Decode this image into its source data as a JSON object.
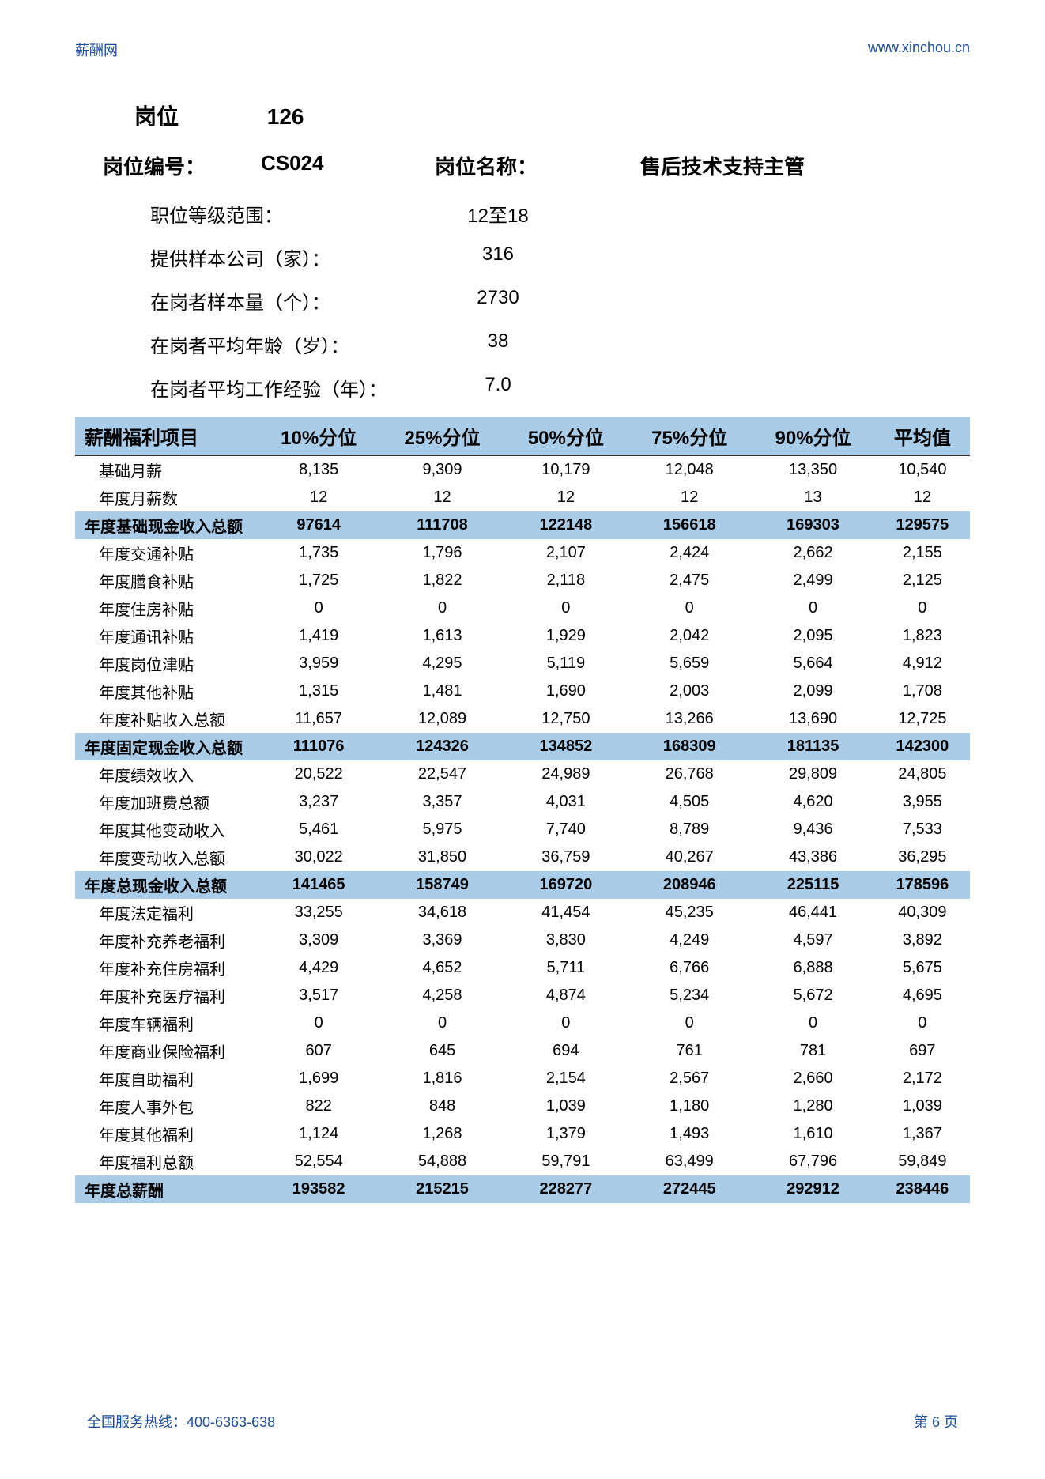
{
  "header": {
    "left": "薪酬网",
    "right": "www.xinchou.cn"
  },
  "footer": {
    "left": "全国服务热线：400-6363-638",
    "right": "第 6 页"
  },
  "top": {
    "position_label": "岗位",
    "position_num": "126",
    "job_code_label": "岗位编号：",
    "job_code": "CS024",
    "job_name_label": "岗位名称：",
    "job_name": "售后技术支持主管"
  },
  "meta": [
    {
      "label": "职位等级范围：",
      "value": "12至18"
    },
    {
      "label": "提供样本公司（家）：",
      "value": "316"
    },
    {
      "label": "在岗者样本量（个）：",
      "value": "2730"
    },
    {
      "label": "在岗者平均年龄（岁）：",
      "value": "38"
    },
    {
      "label": "在岗者平均工作经验（年）：",
      "value": "7.0"
    }
  ],
  "table": {
    "columns": [
      "薪酬福利项目",
      "10%分位",
      "25%分位",
      "50%分位",
      "75%分位",
      "90%分位",
      "平均值"
    ],
    "rows": [
      {
        "type": "data",
        "cells": [
          "基础月薪",
          "8,135",
          "9,309",
          "10,179",
          "12,048",
          "13,350",
          "10,540"
        ]
      },
      {
        "type": "data",
        "cells": [
          "年度月薪数",
          "12",
          "12",
          "12",
          "12",
          "13",
          "12"
        ]
      },
      {
        "type": "sub",
        "cells": [
          "年度基础现金收入总额",
          "97614",
          "111708",
          "122148",
          "156618",
          "169303",
          "129575"
        ]
      },
      {
        "type": "data",
        "cells": [
          "年度交通补贴",
          "1,735",
          "1,796",
          "2,107",
          "2,424",
          "2,662",
          "2,155"
        ]
      },
      {
        "type": "data",
        "cells": [
          "年度膳食补贴",
          "1,725",
          "1,822",
          "2,118",
          "2,475",
          "2,499",
          "2,125"
        ]
      },
      {
        "type": "data",
        "cells": [
          "年度住房补贴",
          "0",
          "0",
          "0",
          "0",
          "0",
          "0"
        ]
      },
      {
        "type": "data",
        "cells": [
          "年度通讯补贴",
          "1,419",
          "1,613",
          "1,929",
          "2,042",
          "2,095",
          "1,823"
        ]
      },
      {
        "type": "data",
        "cells": [
          "年度岗位津贴",
          "3,959",
          "4,295",
          "5,119",
          "5,659",
          "5,664",
          "4,912"
        ]
      },
      {
        "type": "data",
        "cells": [
          "年度其他补贴",
          "1,315",
          "1,481",
          "1,690",
          "2,003",
          "2,099",
          "1,708"
        ]
      },
      {
        "type": "data",
        "cells": [
          "年度补贴收入总额",
          "11,657",
          "12,089",
          "12,750",
          "13,266",
          "13,690",
          "12,725"
        ]
      },
      {
        "type": "sub",
        "cells": [
          "年度固定现金收入总额",
          "111076",
          "124326",
          "134852",
          "168309",
          "181135",
          "142300"
        ]
      },
      {
        "type": "data",
        "cells": [
          "年度绩效收入",
          "20,522",
          "22,547",
          "24,989",
          "26,768",
          "29,809",
          "24,805"
        ]
      },
      {
        "type": "data",
        "cells": [
          "年度加班费总额",
          "3,237",
          "3,357",
          "4,031",
          "4,505",
          "4,620",
          "3,955"
        ]
      },
      {
        "type": "data",
        "cells": [
          "年度其他变动收入",
          "5,461",
          "5,975",
          "7,740",
          "8,789",
          "9,436",
          "7,533"
        ]
      },
      {
        "type": "data",
        "cells": [
          "年度变动收入总额",
          "30,022",
          "31,850",
          "36,759",
          "40,267",
          "43,386",
          "36,295"
        ]
      },
      {
        "type": "sub",
        "cells": [
          "年度总现金收入总额",
          "141465",
          "158749",
          "169720",
          "208946",
          "225115",
          "178596"
        ]
      },
      {
        "type": "data",
        "cells": [
          "年度法定福利",
          "33,255",
          "34,618",
          "41,454",
          "45,235",
          "46,441",
          "40,309"
        ]
      },
      {
        "type": "data",
        "cells": [
          "年度补充养老福利",
          "3,309",
          "3,369",
          "3,830",
          "4,249",
          "4,597",
          "3,892"
        ]
      },
      {
        "type": "data",
        "cells": [
          "年度补充住房福利",
          "4,429",
          "4,652",
          "5,711",
          "6,766",
          "6,888",
          "5,675"
        ]
      },
      {
        "type": "data",
        "cells": [
          "年度补充医疗福利",
          "3,517",
          "4,258",
          "4,874",
          "5,234",
          "5,672",
          "4,695"
        ]
      },
      {
        "type": "data",
        "cells": [
          "年度车辆福利",
          "0",
          "0",
          "0",
          "0",
          "0",
          "0"
        ]
      },
      {
        "type": "data",
        "cells": [
          "年度商业保险福利",
          "607",
          "645",
          "694",
          "761",
          "781",
          "697"
        ]
      },
      {
        "type": "data",
        "cells": [
          "年度自助福利",
          "1,699",
          "1,816",
          "2,154",
          "2,567",
          "2,660",
          "2,172"
        ]
      },
      {
        "type": "data",
        "cells": [
          "年度人事外包",
          "822",
          "848",
          "1,039",
          "1,180",
          "1,280",
          "1,039"
        ]
      },
      {
        "type": "data",
        "cells": [
          "年度其他福利",
          "1,124",
          "1,268",
          "1,379",
          "1,493",
          "1,610",
          "1,367"
        ]
      },
      {
        "type": "data",
        "cells": [
          "年度福利总额",
          "52,554",
          "54,888",
          "59,791",
          "63,499",
          "67,796",
          "59,849"
        ]
      },
      {
        "type": "sub",
        "cells": [
          "年度总薪酬",
          "193582",
          "215215",
          "228277",
          "272445",
          "292912",
          "238446"
        ]
      }
    ]
  },
  "style": {
    "highlight_bg": "#a9cce8",
    "link_color": "#1a4b9c",
    "text_color": "#000000"
  }
}
